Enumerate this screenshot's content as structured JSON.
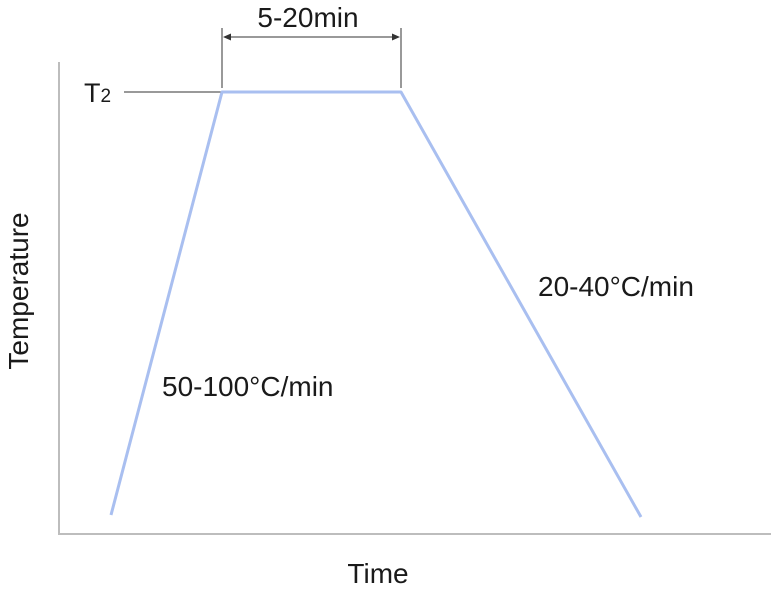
{
  "labels": {
    "hold_time": "5-20min",
    "peak_temp": "T",
    "peak_temp_sub": "2",
    "heating_rate": "50-100°C/min",
    "cooling_rate": "20-40°C/min",
    "y_axis": "Temperature",
    "x_axis": "Time"
  },
  "colors": {
    "profile_line": "#a9bff0",
    "axis": "#bdbdbd",
    "text": "#1a1a1a",
    "guide": "#333333"
  }
}
